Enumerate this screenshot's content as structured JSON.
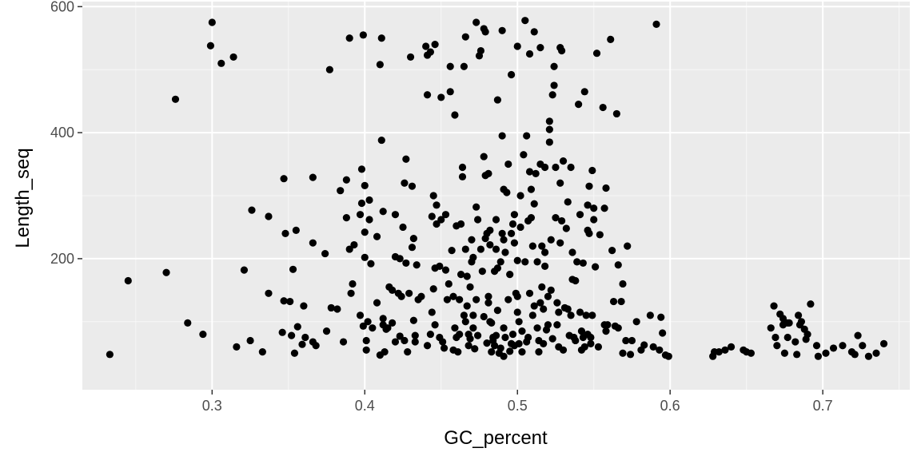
{
  "chart_data": {
    "type": "scatter",
    "title": "",
    "xlabel": "GC_percent",
    "ylabel": "Length_seq",
    "xlim": [
      0.215,
      0.757
    ],
    "ylim": [
      -8,
      608
    ],
    "x_ticks": [
      0.3,
      0.4,
      0.5,
      0.6,
      0.7
    ],
    "x_tick_labels": [
      "0.3",
      "0.4",
      "0.5",
      "0.6",
      "0.7"
    ],
    "x_minor_ticks": [
      0.25,
      0.35,
      0.45,
      0.55,
      0.65,
      0.75
    ],
    "y_ticks": [
      200,
      400,
      600
    ],
    "y_tick_labels": [
      "200",
      "400",
      "600"
    ],
    "y_minor_ticks": [
      100,
      300,
      500
    ],
    "grid": true,
    "colors": {
      "panel_bg": "#ebebeb",
      "grid_major": "#ffffff",
      "grid_minor": "#f7f7f7",
      "point": "#000000"
    },
    "points": [
      [
        0.233,
        48
      ],
      [
        0.245,
        165
      ],
      [
        0.27,
        178
      ],
      [
        0.276,
        453
      ],
      [
        0.284,
        98
      ],
      [
        0.294,
        80
      ],
      [
        0.299,
        538
      ],
      [
        0.3,
        575
      ],
      [
        0.306,
        510
      ],
      [
        0.314,
        520
      ],
      [
        0.316,
        60
      ],
      [
        0.321,
        182
      ],
      [
        0.325,
        70
      ],
      [
        0.326,
        277
      ],
      [
        0.333,
        52
      ],
      [
        0.337,
        145
      ],
      [
        0.337,
        267
      ],
      [
        0.346,
        83
      ],
      [
        0.347,
        133
      ],
      [
        0.347,
        327
      ],
      [
        0.348,
        240
      ],
      [
        0.351,
        132
      ],
      [
        0.352,
        78
      ],
      [
        0.353,
        183
      ],
      [
        0.354,
        50
      ],
      [
        0.355,
        245
      ],
      [
        0.356,
        92
      ],
      [
        0.359,
        64
      ],
      [
        0.36,
        125
      ],
      [
        0.361,
        75
      ],
      [
        0.366,
        225
      ],
      [
        0.366,
        329
      ],
      [
        0.366,
        68
      ],
      [
        0.368,
        62
      ],
      [
        0.374,
        208
      ],
      [
        0.375,
        85
      ],
      [
        0.377,
        500
      ],
      [
        0.378,
        122
      ],
      [
        0.382,
        120
      ],
      [
        0.384,
        308
      ],
      [
        0.386,
        68
      ],
      [
        0.388,
        325
      ],
      [
        0.388,
        265
      ],
      [
        0.39,
        550
      ],
      [
        0.39,
        215
      ],
      [
        0.391,
        145
      ],
      [
        0.392,
        160
      ],
      [
        0.393,
        222
      ],
      [
        0.397,
        270
      ],
      [
        0.397,
        110
      ],
      [
        0.398,
        288
      ],
      [
        0.398,
        342
      ],
      [
        0.399,
        555
      ],
      [
        0.399,
        93
      ],
      [
        0.4,
        202
      ],
      [
        0.4,
        242
      ],
      [
        0.4,
        316
      ],
      [
        0.401,
        55
      ],
      [
        0.401,
        70
      ],
      [
        0.402,
        100
      ],
      [
        0.403,
        262
      ],
      [
        0.403,
        293
      ],
      [
        0.404,
        192
      ],
      [
        0.405,
        90
      ],
      [
        0.408,
        130
      ],
      [
        0.408,
        235
      ],
      [
        0.41,
        508
      ],
      [
        0.41,
        47
      ],
      [
        0.411,
        388
      ],
      [
        0.411,
        550
      ],
      [
        0.412,
        95
      ],
      [
        0.412,
        105
      ],
      [
        0.412,
        275
      ],
      [
        0.413,
        52
      ],
      [
        0.414,
        88
      ],
      [
        0.415,
        90
      ],
      [
        0.416,
        155
      ],
      [
        0.418,
        98
      ],
      [
        0.418,
        150
      ],
      [
        0.42,
        203
      ],
      [
        0.42,
        68
      ],
      [
        0.42,
        270
      ],
      [
        0.422,
        145
      ],
      [
        0.423,
        77
      ],
      [
        0.423,
        200
      ],
      [
        0.424,
        140
      ],
      [
        0.425,
        250
      ],
      [
        0.426,
        70
      ],
      [
        0.426,
        320
      ],
      [
        0.427,
        358
      ],
      [
        0.427,
        193
      ],
      [
        0.428,
        52
      ],
      [
        0.429,
        145
      ],
      [
        0.43,
        520
      ],
      [
        0.431,
        315
      ],
      [
        0.431,
        218
      ],
      [
        0.432,
        232
      ],
      [
        0.432,
        102
      ],
      [
        0.433,
        68
      ],
      [
        0.433,
        78
      ],
      [
        0.434,
        190
      ],
      [
        0.435,
        135
      ],
      [
        0.437,
        140
      ],
      [
        0.44,
        537
      ],
      [
        0.441,
        523
      ],
      [
        0.441,
        460
      ],
      [
        0.441,
        62
      ],
      [
        0.443,
        528
      ],
      [
        0.443,
        80
      ],
      [
        0.444,
        115
      ],
      [
        0.444,
        267
      ],
      [
        0.445,
        300
      ],
      [
        0.445,
        152
      ],
      [
        0.446,
        540
      ],
      [
        0.446,
        185
      ],
      [
        0.446,
        95
      ],
      [
        0.447,
        255
      ],
      [
        0.447,
        285
      ],
      [
        0.449,
        188
      ],
      [
        0.449,
        75
      ],
      [
        0.45,
        456
      ],
      [
        0.45,
        262
      ],
      [
        0.451,
        68
      ],
      [
        0.452,
        58
      ],
      [
        0.453,
        270
      ],
      [
        0.453,
        182
      ],
      [
        0.454,
        135
      ],
      [
        0.455,
        160
      ],
      [
        0.456,
        465
      ],
      [
        0.456,
        505
      ],
      [
        0.457,
        213
      ],
      [
        0.458,
        55
      ],
      [
        0.458,
        140
      ],
      [
        0.459,
        90
      ],
      [
        0.459,
        428
      ],
      [
        0.46,
        252
      ],
      [
        0.46,
        75
      ],
      [
        0.461,
        52
      ],
      [
        0.462,
        135
      ],
      [
        0.462,
        80
      ],
      [
        0.463,
        175
      ],
      [
        0.463,
        255
      ],
      [
        0.464,
        345
      ],
      [
        0.464,
        330
      ],
      [
        0.465,
        505
      ],
      [
        0.465,
        110
      ],
      [
        0.466,
        552
      ],
      [
        0.466,
        215
      ],
      [
        0.466,
        100
      ],
      [
        0.467,
        172
      ],
      [
        0.467,
        125
      ],
      [
        0.468,
        62
      ],
      [
        0.468,
        80
      ],
      [
        0.469,
        155
      ],
      [
        0.469,
        73
      ],
      [
        0.47,
        230
      ],
      [
        0.47,
        195
      ],
      [
        0.471,
        110
      ],
      [
        0.471,
        90
      ],
      [
        0.471,
        202
      ],
      [
        0.472,
        57
      ],
      [
        0.473,
        575
      ],
      [
        0.473,
        282
      ],
      [
        0.473,
        135
      ],
      [
        0.474,
        262
      ],
      [
        0.474,
        78
      ],
      [
        0.475,
        522
      ],
      [
        0.476,
        530
      ],
      [
        0.476,
        215
      ],
      [
        0.477,
        180
      ],
      [
        0.478,
        108
      ],
      [
        0.478,
        565
      ],
      [
        0.478,
        362
      ],
      [
        0.479,
        232
      ],
      [
        0.479,
        332
      ],
      [
        0.479,
        560
      ],
      [
        0.48,
        240
      ],
      [
        0.48,
        66
      ],
      [
        0.481,
        130
      ],
      [
        0.481,
        335
      ],
      [
        0.481,
        140
      ],
      [
        0.482,
        245
      ],
      [
        0.482,
        222
      ],
      [
        0.482,
        100
      ],
      [
        0.483,
        98
      ],
      [
        0.483,
        52
      ],
      [
        0.484,
        75
      ],
      [
        0.484,
        70
      ],
      [
        0.485,
        180
      ],
      [
        0.485,
        62
      ],
      [
        0.486,
        262
      ],
      [
        0.486,
        78
      ],
      [
        0.486,
        215
      ],
      [
        0.487,
        452
      ],
      [
        0.487,
        185
      ],
      [
        0.487,
        118
      ],
      [
        0.488,
        50
      ],
      [
        0.489,
        58
      ],
      [
        0.489,
        195
      ],
      [
        0.49,
        562
      ],
      [
        0.49,
        395
      ],
      [
        0.49,
        240
      ],
      [
        0.491,
        310
      ],
      [
        0.491,
        230
      ],
      [
        0.491,
        90
      ],
      [
        0.491,
        45
      ],
      [
        0.492,
        210
      ],
      [
        0.492,
        75
      ],
      [
        0.493,
        305
      ],
      [
        0.494,
        135
      ],
      [
        0.494,
        350
      ],
      [
        0.495,
        53
      ],
      [
        0.495,
        175
      ],
      [
        0.496,
        65
      ],
      [
        0.496,
        492
      ],
      [
        0.496,
        240
      ],
      [
        0.497,
        255
      ],
      [
        0.497,
        80
      ],
      [
        0.498,
        62
      ],
      [
        0.498,
        225
      ],
      [
        0.498,
        270
      ],
      [
        0.499,
        145
      ],
      [
        0.5,
        537
      ],
      [
        0.5,
        140
      ],
      [
        0.5,
        197
      ],
      [
        0.5,
        115
      ],
      [
        0.501,
        100
      ],
      [
        0.501,
        65
      ],
      [
        0.502,
        250
      ],
      [
        0.502,
        300
      ],
      [
        0.503,
        85
      ],
      [
        0.503,
        52
      ],
      [
        0.504,
        365
      ],
      [
        0.505,
        578
      ],
      [
        0.505,
        195
      ],
      [
        0.506,
        68
      ],
      [
        0.506,
        395
      ],
      [
        0.507,
        75
      ],
      [
        0.507,
        260
      ],
      [
        0.508,
        145
      ],
      [
        0.508,
        525
      ],
      [
        0.508,
        338
      ],
      [
        0.509,
        310
      ],
      [
        0.509,
        265
      ],
      [
        0.51,
        110
      ],
      [
        0.51,
        220
      ],
      [
        0.511,
        560
      ],
      [
        0.511,
        287
      ],
      [
        0.511,
        125
      ],
      [
        0.512,
        335
      ],
      [
        0.513,
        195
      ],
      [
        0.513,
        90
      ],
      [
        0.514,
        70
      ],
      [
        0.514,
        52
      ],
      [
        0.515,
        130
      ],
      [
        0.515,
        535
      ],
      [
        0.515,
        350
      ],
      [
        0.516,
        220
      ],
      [
        0.516,
        155
      ],
      [
        0.517,
        120
      ],
      [
        0.517,
        65
      ],
      [
        0.518,
        210
      ],
      [
        0.518,
        188
      ],
      [
        0.518,
        345
      ],
      [
        0.519,
        87
      ],
      [
        0.52,
        140
      ],
      [
        0.52,
        95
      ],
      [
        0.521,
        418
      ],
      [
        0.521,
        405
      ],
      [
        0.521,
        385
      ],
      [
        0.522,
        230
      ],
      [
        0.522,
        150
      ],
      [
        0.523,
        460
      ],
      [
        0.523,
        73
      ],
      [
        0.524,
        475
      ],
      [
        0.524,
        505
      ],
      [
        0.525,
        265
      ],
      [
        0.525,
        345
      ],
      [
        0.526,
        95
      ],
      [
        0.526,
        130
      ],
      [
        0.527,
        115
      ],
      [
        0.527,
        60
      ],
      [
        0.528,
        320
      ],
      [
        0.528,
        535
      ],
      [
        0.528,
        225
      ],
      [
        0.529,
        530
      ],
      [
        0.529,
        260
      ],
      [
        0.53,
        355
      ],
      [
        0.53,
        55
      ],
      [
        0.531,
        122
      ],
      [
        0.532,
        248
      ],
      [
        0.533,
        290
      ],
      [
        0.533,
        120
      ],
      [
        0.534,
        78
      ],
      [
        0.535,
        110
      ],
      [
        0.535,
        345
      ],
      [
        0.536,
        210
      ],
      [
        0.536,
        167
      ],
      [
        0.537,
        75
      ],
      [
        0.538,
        165
      ],
      [
        0.538,
        70
      ],
      [
        0.539,
        195
      ],
      [
        0.54,
        445
      ],
      [
        0.541,
        270
      ],
      [
        0.541,
        115
      ],
      [
        0.542,
        55
      ],
      [
        0.542,
        85
      ],
      [
        0.543,
        75
      ],
      [
        0.543,
        193
      ],
      [
        0.544,
        465
      ],
      [
        0.544,
        60
      ],
      [
        0.545,
        110
      ],
      [
        0.546,
        285
      ],
      [
        0.546,
        245
      ],
      [
        0.546,
        80
      ],
      [
        0.547,
        315
      ],
      [
        0.547,
        240
      ],
      [
        0.548,
        65
      ],
      [
        0.548,
        75
      ],
      [
        0.549,
        340
      ],
      [
        0.549,
        110
      ],
      [
        0.55,
        262
      ],
      [
        0.55,
        280
      ],
      [
        0.551,
        187
      ],
      [
        0.552,
        526
      ],
      [
        0.553,
        60
      ],
      [
        0.554,
        238
      ],
      [
        0.556,
        440
      ],
      [
        0.557,
        95
      ],
      [
        0.557,
        280
      ],
      [
        0.558,
        312
      ],
      [
        0.558,
        85
      ],
      [
        0.559,
        95
      ],
      [
        0.561,
        548
      ],
      [
        0.562,
        213
      ],
      [
        0.563,
        132
      ],
      [
        0.564,
        93
      ],
      [
        0.565,
        430
      ],
      [
        0.566,
        190
      ],
      [
        0.566,
        90
      ],
      [
        0.568,
        132
      ],
      [
        0.569,
        160
      ],
      [
        0.569,
        50
      ],
      [
        0.571,
        70
      ],
      [
        0.572,
        220
      ],
      [
        0.574,
        48
      ],
      [
        0.575,
        70
      ],
      [
        0.578,
        100
      ],
      [
        0.581,
        55
      ],
      [
        0.583,
        63
      ],
      [
        0.587,
        110
      ],
      [
        0.589,
        60
      ],
      [
        0.591,
        572
      ],
      [
        0.593,
        55
      ],
      [
        0.594,
        107
      ],
      [
        0.595,
        82
      ],
      [
        0.597,
        47
      ],
      [
        0.599,
        45
      ],
      [
        0.628,
        45
      ],
      [
        0.629,
        52
      ],
      [
        0.632,
        52
      ],
      [
        0.636,
        55
      ],
      [
        0.64,
        60
      ],
      [
        0.648,
        55
      ],
      [
        0.65,
        52
      ],
      [
        0.653,
        50
      ],
      [
        0.666,
        90
      ],
      [
        0.668,
        125
      ],
      [
        0.669,
        75
      ],
      [
        0.67,
        62
      ],
      [
        0.672,
        112
      ],
      [
        0.674,
        105
      ],
      [
        0.674,
        95
      ],
      [
        0.675,
        50
      ],
      [
        0.677,
        98
      ],
      [
        0.677,
        75
      ],
      [
        0.678,
        98
      ],
      [
        0.682,
        68
      ],
      [
        0.683,
        48
      ],
      [
        0.684,
        110
      ],
      [
        0.685,
        95
      ],
      [
        0.686,
        100
      ],
      [
        0.688,
        88
      ],
      [
        0.689,
        72
      ],
      [
        0.69,
        80
      ],
      [
        0.692,
        128
      ],
      [
        0.696,
        62
      ],
      [
        0.697,
        45
      ],
      [
        0.702,
        50
      ],
      [
        0.707,
        58
      ],
      [
        0.713,
        62
      ],
      [
        0.719,
        52
      ],
      [
        0.721,
        48
      ],
      [
        0.723,
        78
      ],
      [
        0.726,
        62
      ],
      [
        0.73,
        45
      ],
      [
        0.735,
        50
      ],
      [
        0.74,
        65
      ]
    ]
  }
}
